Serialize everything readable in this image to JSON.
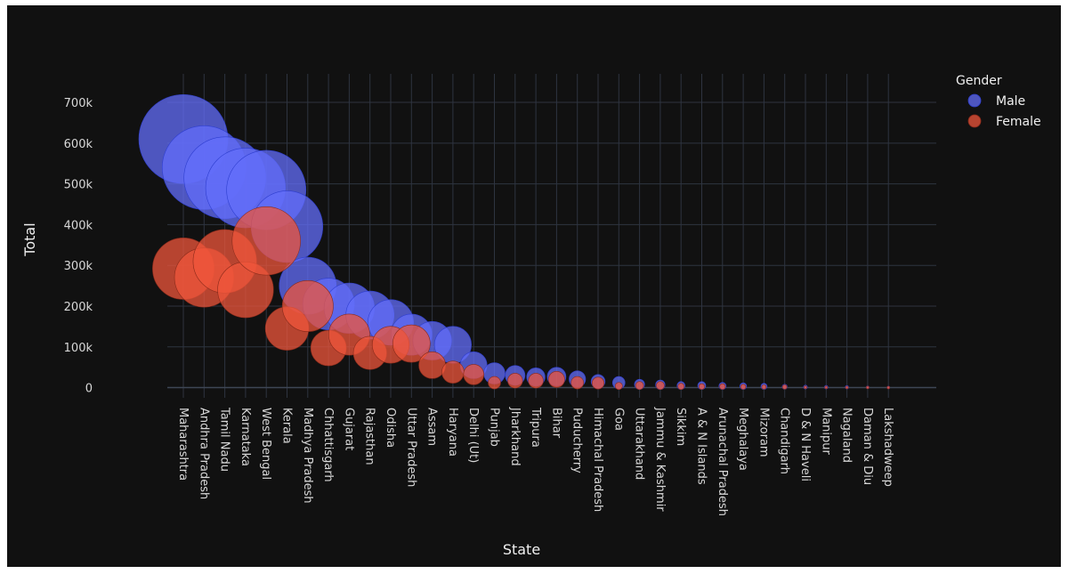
{
  "chart_data": {
    "type": "scatter",
    "xlabel": "State",
    "ylabel": "Total",
    "ylim": [
      -25000,
      770000
    ],
    "yticks": [
      0,
      100000,
      200000,
      300000,
      400000,
      500000,
      600000,
      700000
    ],
    "ytick_labels": [
      "0",
      "100k",
      "200k",
      "300k",
      "400k",
      "500k",
      "600k",
      "700k"
    ],
    "grid": true,
    "marker_size_encodes": "Total",
    "legend": {
      "title": "Gender",
      "placement": "top-right"
    },
    "categories": [
      "Maharashtra",
      "Andhra Pradesh",
      "Tamil Nadu",
      "Karnataka",
      "West Bengal",
      "Kerala",
      "Madhya Pradesh",
      "Chhattisgarh",
      "Gujarat",
      "Rajasthan",
      "Odisha",
      "Uttar Pradesh",
      "Assam",
      "Haryana",
      "Delhi (Ut)",
      "Punjab",
      "Jharkhand",
      "Tripura",
      "Bihar",
      "Puducherry",
      "Himachal Pradesh",
      "Goa",
      "Uttarakhand",
      "Jammu & Kashmir",
      "Sikkim",
      "A & N Islands",
      "Arunachal Pradesh",
      "Meghalaya",
      "Mizoram",
      "Chandigarh",
      "D & N Haveli",
      "Manipur",
      "Nagaland",
      "Daman & Diu",
      "Lakshadweep"
    ],
    "series": [
      {
        "name": "Male",
        "color": "#636efa",
        "values": [
          610000,
          540000,
          515000,
          490000,
          485000,
          395000,
          250000,
          205000,
          195000,
          178000,
          160000,
          130000,
          115000,
          105000,
          55000,
          35000,
          30000,
          26000,
          27000,
          21000,
          15000,
          12000,
          8000,
          7000,
          5000,
          5000,
          4000,
          3500,
          3000,
          2000,
          1200,
          1000,
          900,
          600,
          300
        ]
      },
      {
        "name": "Female",
        "color": "#ef553b",
        "values": [
          292000,
          270000,
          310000,
          240000,
          360000,
          145000,
          200000,
          97000,
          130000,
          85000,
          105000,
          108000,
          55000,
          38000,
          32000,
          12000,
          17000,
          17000,
          20000,
          12000,
          11000,
          4000,
          5000,
          5000,
          3000,
          2500,
          2500,
          2000,
          1500,
          1500,
          600,
          500,
          400,
          300,
          100
        ]
      }
    ]
  }
}
